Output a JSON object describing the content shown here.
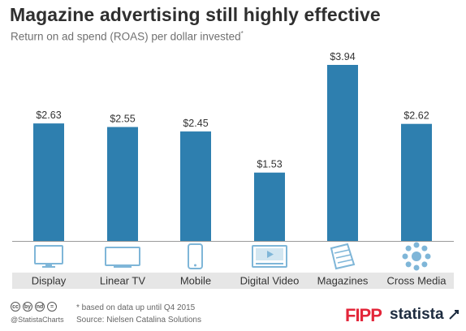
{
  "title": "Magazine advertising still highly effective",
  "subtitle": "Return on ad spend (ROAS) per dollar invested",
  "subtitle_mark": "*",
  "chart_data": {
    "type": "bar",
    "categories": [
      "Display",
      "Linear TV",
      "Mobile",
      "Digital Video",
      "Magazines",
      "Cross Media"
    ],
    "values": [
      2.63,
      2.55,
      2.45,
      1.53,
      3.94,
      2.62
    ],
    "data_labels": [
      "$2.63",
      "$2.55",
      "$2.45",
      "$1.53",
      "$3.94",
      "$2.62"
    ],
    "icons": [
      "monitor-icon",
      "tv-icon",
      "mobile-phone-icon",
      "video-player-icon",
      "magazine-icon",
      "cross-media-network-icon"
    ],
    "ylim": [
      0,
      4
    ],
    "grid": false,
    "bar_color": "#2e7faf",
    "icon_color": "#7fb6d8",
    "label_band_color": "#e6e6e6"
  },
  "footer": {
    "note": "* based on data up until Q4 2015",
    "source": "Source: Nielsen Catalina Solutions",
    "handle": "@StatistaCharts",
    "cc_icons": [
      "cc",
      "by",
      "nd",
      "="
    ],
    "brand_fipp": "FIPP",
    "brand_statista": "statista"
  }
}
